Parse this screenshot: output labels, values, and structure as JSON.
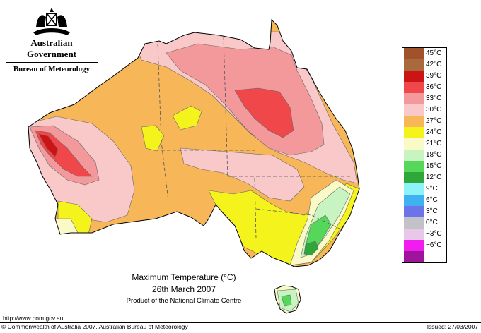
{
  "header": {
    "government": "Australian Government",
    "bureau": "Bureau of Meteorology"
  },
  "caption": {
    "title": "Maximum Temperature (°C)",
    "date": "26th March 2007",
    "product": "Product of the National Climate Centre"
  },
  "footer": {
    "url": "http://www.bom.gov.au",
    "copyright": "© Commonwealth of Australia 2007, Australian Bureau of Meteorology",
    "issued": "Issued: 27/03/2007"
  },
  "legend": [
    {
      "label": "45°C",
      "color": "#a0522d"
    },
    {
      "label": "42°C",
      "color": "#a86a3c"
    },
    {
      "label": "39°C",
      "color": "#cc1414"
    },
    {
      "label": "36°C",
      "color": "#f0484a"
    },
    {
      "label": "33°C",
      "color": "#f4999b"
    },
    {
      "label": "30°C",
      "color": "#f8c9c8"
    },
    {
      "label": "27°C",
      "color": "#f7b657"
    },
    {
      "label": "24°C",
      "color": "#f4f41c"
    },
    {
      "label": "21°C",
      "color": "#fafac8"
    },
    {
      "label": "18°C",
      "color": "#c8f4c2"
    },
    {
      "label": "15°C",
      "color": "#55d85a"
    },
    {
      "label": "12°C",
      "color": "#2fa63a"
    },
    {
      "label": "9°C",
      "color": "#8cf4f8"
    },
    {
      "label": "6°C",
      "color": "#3fb1f0"
    },
    {
      "label": "3°C",
      "color": "#6b74e8"
    },
    {
      "label": "0°C",
      "color": "#c2c2c8"
    },
    {
      "label": "−3°C",
      "color": "#e8c8e8"
    },
    {
      "label": "−6°C",
      "color": "#f01cf0"
    },
    {
      "label": "",
      "color": "#a0149c"
    }
  ]
}
